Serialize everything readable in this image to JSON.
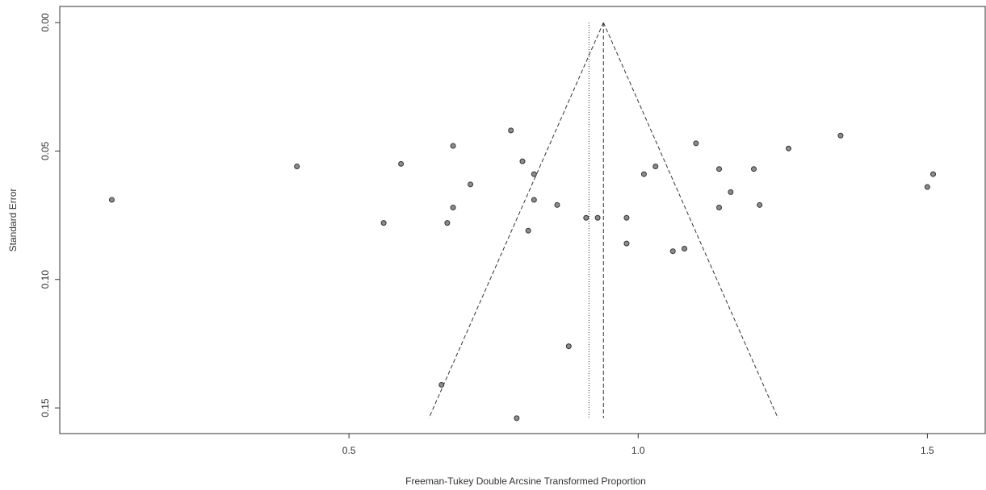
{
  "chart_data": {
    "type": "scatter",
    "title": "",
    "xlabel": "Freeman-Tukey Double Arcsine Transformed Proportion",
    "ylabel": "Standard Error",
    "xlim": [
      0.0,
      1.6
    ],
    "ylim": [
      0.0,
      0.16
    ],
    "y_reversed": true,
    "x_ticks": [
      0.5,
      1.0,
      1.5
    ],
    "x_tick_labels": [
      "0.5",
      "1.0",
      "1.5"
    ],
    "y_ticks": [
      0.0,
      0.05,
      0.1,
      0.15
    ],
    "y_tick_labels": [
      "0.00",
      "0.05",
      "0.10",
      "0.15"
    ],
    "grid": false,
    "pooled_estimate": 0.94,
    "reference_line": 0.915,
    "funnel_max_se": 0.154,
    "colors": {
      "points": "#8c8c8c",
      "outline": "#333333",
      "lines": "#333333"
    },
    "points": [
      {
        "x": 0.09,
        "y": 0.069
      },
      {
        "x": 0.41,
        "y": 0.056
      },
      {
        "x": 0.56,
        "y": 0.078
      },
      {
        "x": 0.59,
        "y": 0.055
      },
      {
        "x": 0.67,
        "y": 0.078
      },
      {
        "x": 0.68,
        "y": 0.072
      },
      {
        "x": 0.68,
        "y": 0.048
      },
      {
        "x": 0.71,
        "y": 0.063
      },
      {
        "x": 0.66,
        "y": 0.141
      },
      {
        "x": 0.78,
        "y": 0.042
      },
      {
        "x": 0.8,
        "y": 0.054
      },
      {
        "x": 0.81,
        "y": 0.081
      },
      {
        "x": 0.82,
        "y": 0.069
      },
      {
        "x": 0.82,
        "y": 0.059
      },
      {
        "x": 0.79,
        "y": 0.154
      },
      {
        "x": 0.86,
        "y": 0.071
      },
      {
        "x": 0.88,
        "y": 0.126
      },
      {
        "x": 0.91,
        "y": 0.076
      },
      {
        "x": 0.93,
        "y": 0.076
      },
      {
        "x": 0.98,
        "y": 0.076
      },
      {
        "x": 0.98,
        "y": 0.086
      },
      {
        "x": 1.01,
        "y": 0.059
      },
      {
        "x": 1.03,
        "y": 0.056
      },
      {
        "x": 1.06,
        "y": 0.089
      },
      {
        "x": 1.08,
        "y": 0.088
      },
      {
        "x": 1.1,
        "y": 0.047
      },
      {
        "x": 1.14,
        "y": 0.057
      },
      {
        "x": 1.14,
        "y": 0.072
      },
      {
        "x": 1.16,
        "y": 0.066
      },
      {
        "x": 1.2,
        "y": 0.057
      },
      {
        "x": 1.21,
        "y": 0.071
      },
      {
        "x": 1.26,
        "y": 0.049
      },
      {
        "x": 1.35,
        "y": 0.044
      },
      {
        "x": 1.5,
        "y": 0.064
      },
      {
        "x": 1.51,
        "y": 0.059
      }
    ]
  }
}
